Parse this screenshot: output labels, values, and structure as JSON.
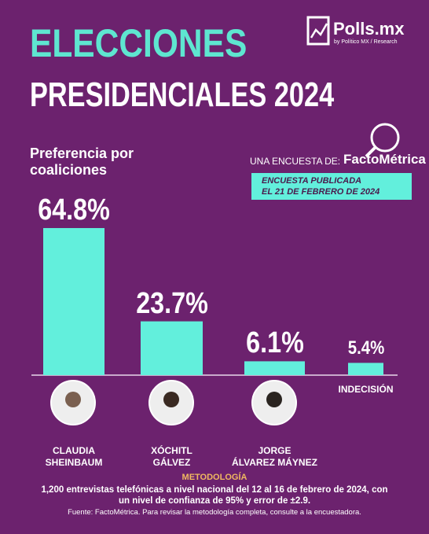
{
  "header": {
    "title_line1": "ELECCIONES",
    "title_line2": "PRESIDENCIALES 2024",
    "brand": "Polls.mx",
    "brand_sub": "by Político MX / Research"
  },
  "source_box": {
    "intro": "UNA ENCUESTA DE:",
    "pollster": "FactoMétrica",
    "published": "ENCUESTA PUBLICADA\nEL 21 DE FEBRERO DE 2024"
  },
  "chart_data": {
    "type": "bar",
    "title": "Preferencia por\ncoaliciones",
    "categories": [
      "CLAUDIA\nSHEINBAUM",
      "XÓCHITL\nGÁLVEZ",
      "JORGE\nÁLVAREZ MÁYNEZ",
      "INDECISIÓN"
    ],
    "values": [
      64.8,
      23.7,
      6.1,
      5.4
    ],
    "value_labels": [
      "64.8%",
      "23.7%",
      "6.1%",
      "5.4%"
    ],
    "color": "#62efdc"
  },
  "footer": {
    "heading": "METODOLOGÍA",
    "text": "1,200 entrevistas telefónicas a nivel nacional del 12 al 16 de febrero de 2024, con\nun nivel de confianza de 95% y error de ±2.9.",
    "source": "Fuente: FactoMétrica. Para revisar la metodología completa, consulte a la encuestadora."
  }
}
